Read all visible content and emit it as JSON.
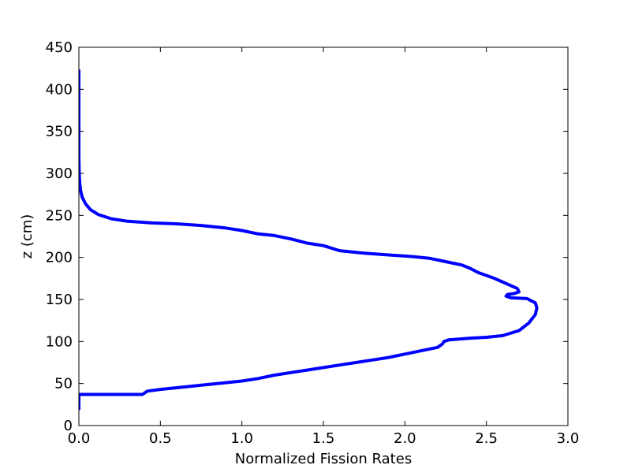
{
  "chart_data": {
    "type": "line",
    "title": "",
    "xlabel": "Normalized Fission Rates",
    "ylabel": "z (cm)",
    "xlim": [
      0.0,
      3.0
    ],
    "ylim": [
      0,
      450
    ],
    "xticks": [
      0.0,
      0.5,
      1.0,
      1.5,
      2.0,
      2.5,
      3.0
    ],
    "xtick_labels": [
      "0.0",
      "0.5",
      "1.0",
      "1.5",
      "2.0",
      "2.5",
      "3.0"
    ],
    "yticks": [
      0,
      50,
      100,
      150,
      200,
      250,
      300,
      350,
      400,
      450
    ],
    "ytick_labels": [
      "0",
      "50",
      "100",
      "150",
      "200",
      "250",
      "300",
      "350",
      "400",
      "450"
    ],
    "grid": false,
    "legend": "none",
    "series": [
      {
        "color": "#0000ff",
        "points": [
          [
            0.0,
            20
          ],
          [
            0.0,
            37
          ],
          [
            0.39,
            37
          ],
          [
            0.42,
            41
          ],
          [
            0.5,
            43
          ],
          [
            0.6,
            45
          ],
          [
            0.7,
            47
          ],
          [
            0.8,
            49
          ],
          [
            0.9,
            51
          ],
          [
            1.0,
            53
          ],
          [
            1.1,
            56
          ],
          [
            1.2,
            60
          ],
          [
            1.3,
            63
          ],
          [
            1.4,
            66
          ],
          [
            1.5,
            69
          ],
          [
            1.6,
            72
          ],
          [
            1.7,
            75
          ],
          [
            1.8,
            78
          ],
          [
            1.9,
            81
          ],
          [
            2.0,
            85
          ],
          [
            2.1,
            89
          ],
          [
            2.2,
            93
          ],
          [
            2.23,
            97
          ],
          [
            2.24,
            100
          ],
          [
            2.27,
            102
          ],
          [
            2.4,
            104
          ],
          [
            2.5,
            105
          ],
          [
            2.6,
            107
          ],
          [
            2.7,
            113
          ],
          [
            2.76,
            122
          ],
          [
            2.8,
            132
          ],
          [
            2.81,
            140
          ],
          [
            2.8,
            146
          ],
          [
            2.75,
            151
          ],
          [
            2.65,
            152
          ],
          [
            2.62,
            154
          ],
          [
            2.63,
            156
          ],
          [
            2.67,
            157
          ],
          [
            2.7,
            159
          ],
          [
            2.69,
            163
          ],
          [
            2.62,
            169
          ],
          [
            2.55,
            175
          ],
          [
            2.45,
            182
          ],
          [
            2.4,
            187
          ],
          [
            2.35,
            191
          ],
          [
            2.25,
            195
          ],
          [
            2.15,
            199
          ],
          [
            2.05,
            201
          ],
          [
            1.9,
            203
          ],
          [
            1.75,
            205
          ],
          [
            1.6,
            208
          ],
          [
            1.5,
            214
          ],
          [
            1.4,
            217
          ],
          [
            1.3,
            222
          ],
          [
            1.2,
            226
          ],
          [
            1.1,
            228
          ],
          [
            1.0,
            232
          ],
          [
            0.9,
            235
          ],
          [
            0.75,
            238
          ],
          [
            0.6,
            240
          ],
          [
            0.45,
            241
          ],
          [
            0.3,
            243
          ],
          [
            0.2,
            246
          ],
          [
            0.12,
            251
          ],
          [
            0.07,
            257
          ],
          [
            0.04,
            264
          ],
          [
            0.02,
            272
          ],
          [
            0.01,
            280
          ],
          [
            0.005,
            290
          ],
          [
            0.002,
            300
          ],
          [
            0.0,
            320
          ],
          [
            0.0,
            360
          ],
          [
            0.0,
            400
          ],
          [
            0.0,
            422
          ]
        ]
      }
    ]
  }
}
